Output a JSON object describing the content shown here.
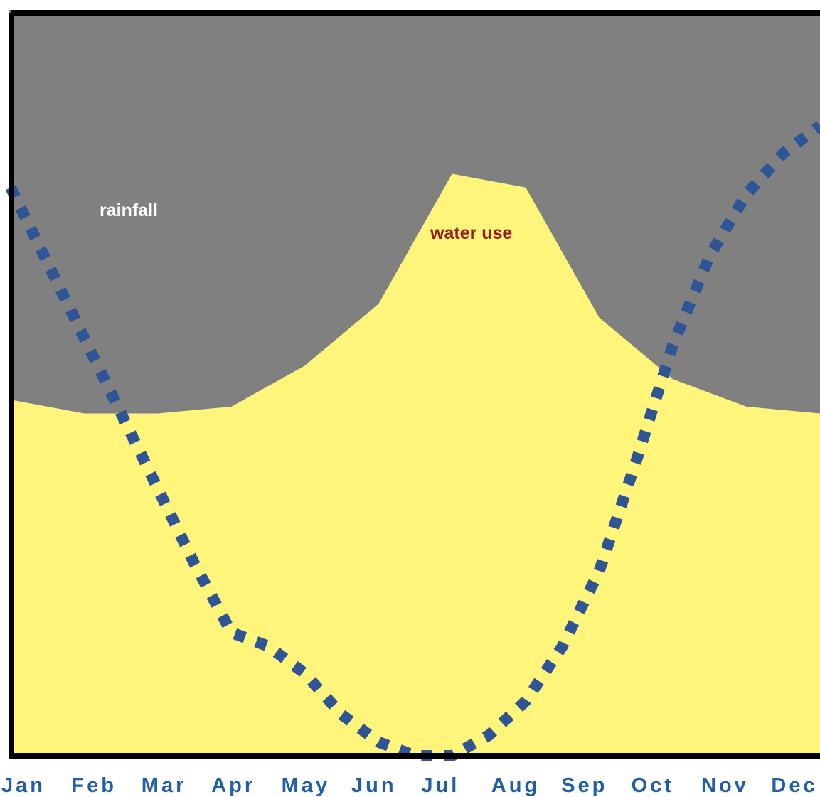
{
  "chart_data": {
    "type": "area",
    "categories": [
      "Jan",
      "Feb",
      "Mar",
      "Apr",
      "May",
      "Jun",
      "Jul",
      "Aug",
      "Sep",
      "Oct",
      "Nov",
      "Dec"
    ],
    "x_range": [
      0,
      11
    ],
    "y_range": [
      0,
      100
    ],
    "grid": false,
    "series": [
      {
        "name": "water use",
        "type": "area",
        "x": [
          0,
          1,
          2,
          3,
          4,
          5,
          6,
          7,
          8,
          9,
          10,
          11
        ],
        "values": [
          52,
          50,
          50,
          51,
          57,
          66,
          85,
          83,
          64,
          55,
          51,
          50
        ]
      },
      {
        "name": "rainfall",
        "type": "line",
        "x": [
          0,
          0.5,
          1,
          1.5,
          2,
          2.5,
          3,
          3.5,
          4,
          4.5,
          5,
          5.5,
          6,
          6.5,
          7,
          7.5,
          8,
          8.5,
          9,
          9.5,
          10,
          10.5,
          11
        ],
        "values": [
          83,
          72,
          61,
          50,
          39,
          28,
          18,
          16,
          12,
          6,
          2,
          0,
          0,
          3,
          8,
          16,
          27,
          43,
          60,
          73,
          82,
          88,
          92
        ]
      }
    ],
    "labels": {
      "rainfall": "rainfall",
      "water_use": "water use"
    },
    "colors": {
      "background": "#808080",
      "water_use_fill": "#fef57a",
      "rainfall_line": "#2f5597",
      "axis": "#000000",
      "month_text": "#1f5ea8",
      "rainfall_text": "#ffffff",
      "water_use_text": "#9b1c1c"
    }
  }
}
